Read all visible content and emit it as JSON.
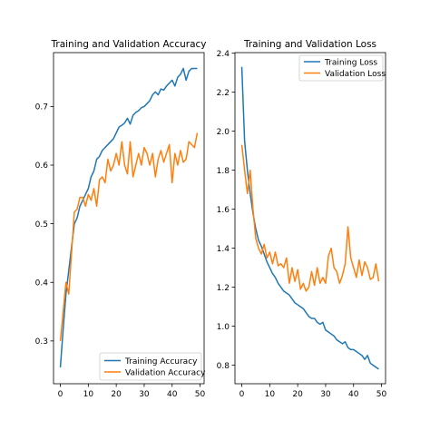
{
  "colors": {
    "training": "#1f77b4",
    "validation": "#ff7f0e"
  },
  "chart_data": [
    {
      "type": "line",
      "title": "Training and Validation Accuracy",
      "xlabel": "",
      "ylabel": "",
      "xlim": [
        -2.45,
        51.45
      ],
      "ylim": [
        0.227,
        0.792
      ],
      "xticks": [
        0,
        10,
        20,
        30,
        40,
        50
      ],
      "yticks": [
        0.3,
        0.4,
        0.5,
        0.6,
        0.7
      ],
      "xtick_labels": [
        "0",
        "10",
        "20",
        "30",
        "40",
        "50"
      ],
      "ytick_labels": [
        "0.3",
        "0.4",
        "0.5",
        "0.6",
        "0.7"
      ],
      "grid": false,
      "legend_position": "lower right",
      "x": [
        0,
        1,
        2,
        3,
        4,
        5,
        6,
        7,
        8,
        9,
        10,
        11,
        12,
        13,
        14,
        15,
        16,
        17,
        18,
        19,
        20,
        21,
        22,
        23,
        24,
        25,
        26,
        27,
        28,
        29,
        30,
        31,
        32,
        33,
        34,
        35,
        36,
        37,
        38,
        39,
        40,
        41,
        42,
        43,
        44,
        45,
        46,
        47,
        48,
        49
      ],
      "series": [
        {
          "name": "Training Accuracy",
          "color_key": "training",
          "values": [
            0.255,
            0.32,
            0.38,
            0.42,
            0.46,
            0.5,
            0.51,
            0.53,
            0.54,
            0.55,
            0.56,
            0.58,
            0.59,
            0.61,
            0.615,
            0.625,
            0.63,
            0.635,
            0.64,
            0.645,
            0.655,
            0.665,
            0.668,
            0.672,
            0.68,
            0.67,
            0.685,
            0.69,
            0.693,
            0.698,
            0.7,
            0.705,
            0.71,
            0.72,
            0.725,
            0.72,
            0.73,
            0.728,
            0.735,
            0.74,
            0.745,
            0.735,
            0.75,
            0.755,
            0.765,
            0.745,
            0.76,
            0.765,
            0.765,
            0.765
          ]
        },
        {
          "name": "Validation Accuracy",
          "color_key": "validation",
          "values": [
            0.3,
            0.35,
            0.4,
            0.38,
            0.45,
            0.52,
            0.525,
            0.545,
            0.545,
            0.53,
            0.55,
            0.54,
            0.56,
            0.53,
            0.575,
            0.58,
            0.57,
            0.61,
            0.59,
            0.6,
            0.62,
            0.6,
            0.64,
            0.6,
            0.585,
            0.64,
            0.58,
            0.6,
            0.62,
            0.6,
            0.63,
            0.62,
            0.6,
            0.62,
            0.58,
            0.61,
            0.625,
            0.605,
            0.62,
            0.635,
            0.57,
            0.62,
            0.6,
            0.625,
            0.605,
            0.61,
            0.64,
            0.635,
            0.63,
            0.655
          ]
        }
      ]
    },
    {
      "type": "line",
      "title": "Training and Validation Loss",
      "xlabel": "",
      "ylabel": "",
      "xlim": [
        -2.45,
        51.45
      ],
      "ylim": [
        0.705,
        2.403
      ],
      "xticks": [
        0,
        10,
        20,
        30,
        40,
        50
      ],
      "yticks": [
        0.8,
        1.0,
        1.2,
        1.4,
        1.6,
        1.8,
        2.0,
        2.2,
        2.4
      ],
      "xtick_labels": [
        "0",
        "10",
        "20",
        "30",
        "40",
        "50"
      ],
      "ytick_labels": [
        "0.8",
        "1.0",
        "1.2",
        "1.4",
        "1.6",
        "1.8",
        "2.0",
        "2.2",
        "2.4"
      ],
      "grid": false,
      "legend_position": "upper right",
      "x": [
        0,
        1,
        2,
        3,
        4,
        5,
        6,
        7,
        8,
        9,
        10,
        11,
        12,
        13,
        14,
        15,
        16,
        17,
        18,
        19,
        20,
        21,
        22,
        23,
        24,
        25,
        26,
        27,
        28,
        29,
        30,
        31,
        32,
        33,
        34,
        35,
        36,
        37,
        38,
        39,
        40,
        41,
        42,
        43,
        44,
        45,
        46,
        47,
        48,
        49
      ],
      "series": [
        {
          "name": "Training Loss",
          "color_key": "training",
          "values": [
            2.33,
            1.95,
            1.8,
            1.68,
            1.58,
            1.5,
            1.44,
            1.41,
            1.37,
            1.33,
            1.3,
            1.27,
            1.25,
            1.22,
            1.2,
            1.18,
            1.17,
            1.16,
            1.14,
            1.12,
            1.11,
            1.1,
            1.09,
            1.07,
            1.05,
            1.04,
            1.04,
            1.02,
            1.01,
            1.02,
            0.98,
            0.97,
            0.96,
            0.95,
            0.93,
            0.92,
            0.91,
            0.92,
            0.89,
            0.88,
            0.88,
            0.87,
            0.86,
            0.85,
            0.83,
            0.85,
            0.81,
            0.8,
            0.79,
            0.78
          ]
        },
        {
          "name": "Validation Loss",
          "color_key": "validation",
          "values": [
            1.93,
            1.8,
            1.68,
            1.8,
            1.6,
            1.45,
            1.4,
            1.37,
            1.42,
            1.35,
            1.38,
            1.32,
            1.38,
            1.31,
            1.32,
            1.3,
            1.35,
            1.22,
            1.3,
            1.23,
            1.29,
            1.19,
            1.22,
            1.18,
            1.2,
            1.28,
            1.21,
            1.3,
            1.22,
            1.25,
            1.22,
            1.36,
            1.4,
            1.3,
            1.28,
            1.22,
            1.26,
            1.32,
            1.51,
            1.35,
            1.3,
            1.25,
            1.34,
            1.26,
            1.33,
            1.3,
            1.24,
            1.25,
            1.32,
            1.23
          ]
        }
      ]
    }
  ]
}
